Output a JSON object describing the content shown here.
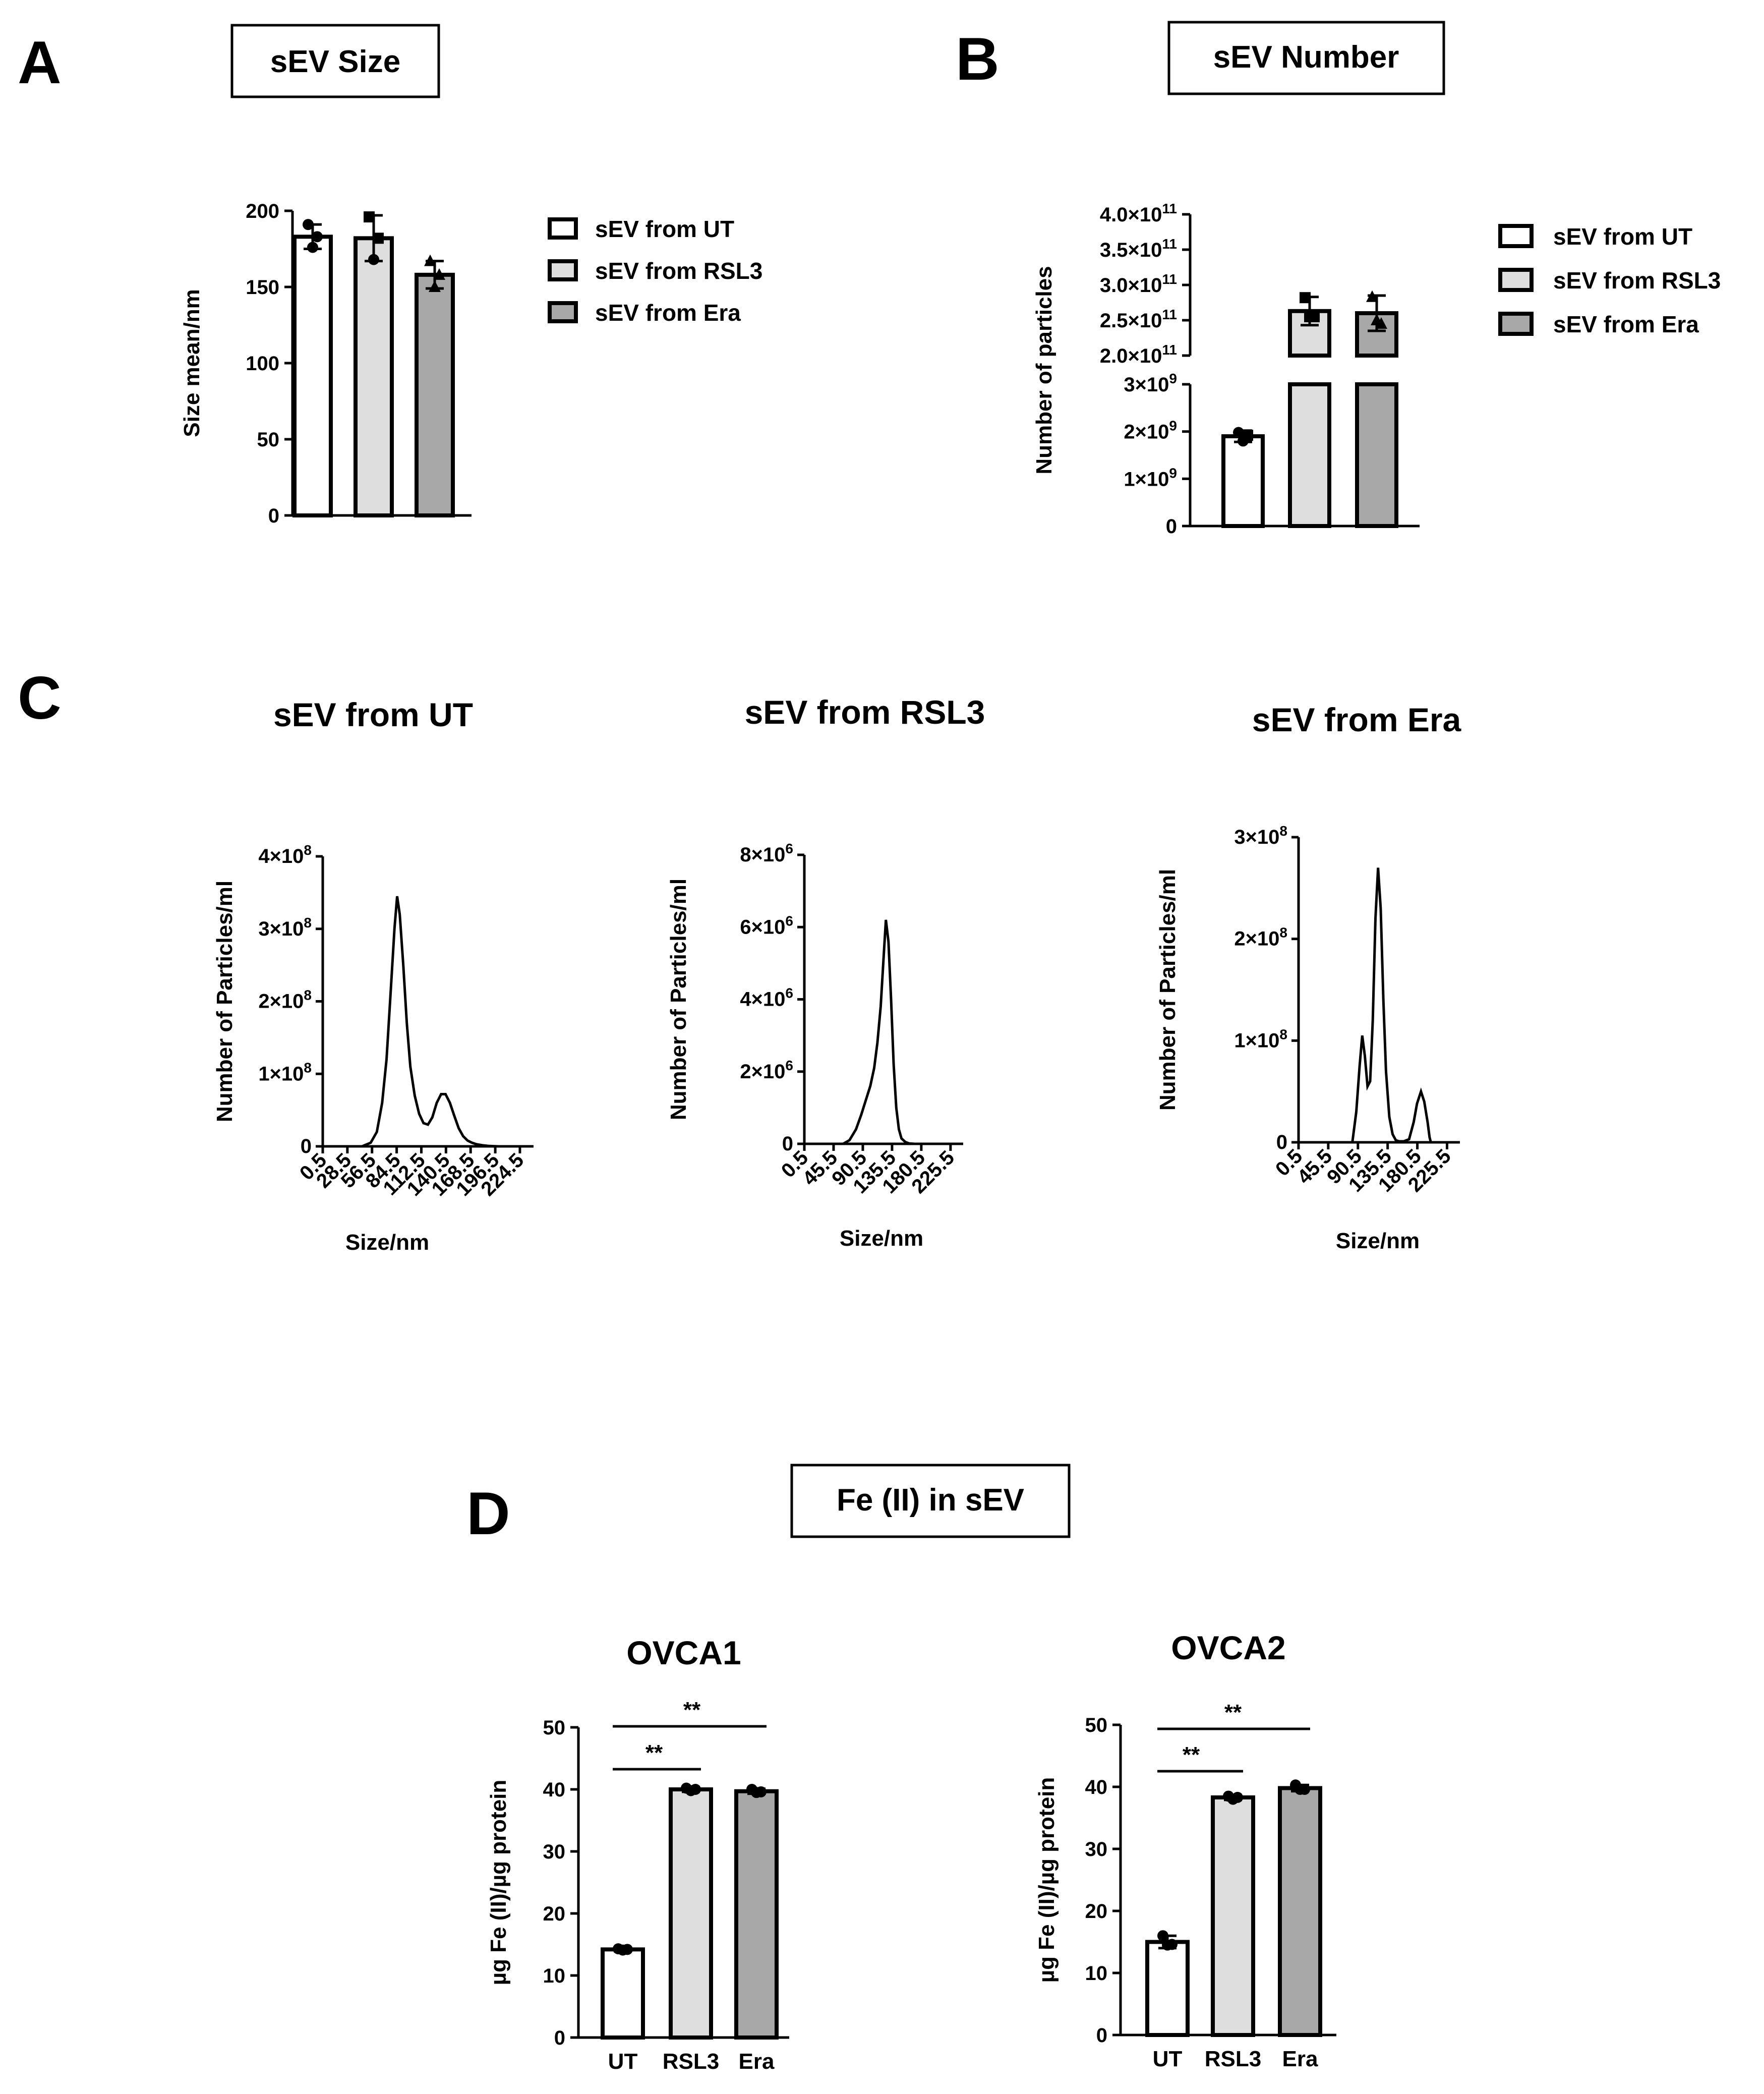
{
  "panels": {
    "A": {
      "letter": "A",
      "title": "sEV Size"
    },
    "B": {
      "letter": "B",
      "title": "sEV Number"
    },
    "C": {
      "letter": "C"
    },
    "D": {
      "letter": "D",
      "title": "Fe (II) in sEV"
    }
  },
  "legend": {
    "items": [
      {
        "label": "sEV from UT",
        "color": "#ffffff"
      },
      {
        "label": "sEV from RSL3",
        "color": "#dedede"
      },
      {
        "label": "sEV from Era",
        "color": "#a8a8a8"
      }
    ]
  },
  "chart_data": [
    {
      "id": "size",
      "type": "bar",
      "ylabel": "Size mean/nm",
      "ylim": [
        0,
        200
      ],
      "yticks": [
        "0",
        "50",
        "100",
        "150",
        "200"
      ],
      "categories": [
        "sEV from UT",
        "sEV from RSL3",
        "sEV from Era"
      ],
      "values": [
        183,
        182,
        158
      ],
      "errors": [
        8,
        15,
        9
      ],
      "points": [
        [
          191,
          176,
          183
        ],
        [
          196,
          168,
          182
        ],
        [
          167,
          150,
          158
        ]
      ]
    },
    {
      "id": "number",
      "type": "bar",
      "ylabel": "Number of particles",
      "axis_break": true,
      "lower_ylim": [
        0,
        3000000000.0
      ],
      "lower_ticks": [
        {
          "m": "0",
          "e": ""
        },
        {
          "m": "1×10",
          "e": "9"
        },
        {
          "m": "2×10",
          "e": "9"
        },
        {
          "m": "3×10",
          "e": "9"
        }
      ],
      "upper_ylim": [
        200000000000.0,
        400000000000.0
      ],
      "upper_ticks": [
        {
          "m": "2.0×10",
          "e": "11"
        },
        {
          "m": "2.5×10",
          "e": "11"
        },
        {
          "m": "3.0×10",
          "e": "11"
        },
        {
          "m": "3.5×10",
          "e": "11"
        },
        {
          "m": "4.0×10",
          "e": "11"
        }
      ],
      "categories": [
        "sEV from UT",
        "sEV from RSL3",
        "sEV from Era"
      ],
      "values": [
        1900000000.0,
        263000000000.0,
        260000000000.0
      ],
      "errors": [
        120000000.0,
        20000000000.0,
        25000000000.0
      ],
      "points": [
        [
          1980000000.0,
          1800000000.0,
          1920000000.0
        ],
        [
          282000000000.0,
          255000000000.0,
          255000000000.0
        ],
        [
          283000000000.0,
          250000000000.0,
          245000000000.0
        ]
      ]
    },
    {
      "id": "dist_ut",
      "type": "line",
      "title": "sEV from UT",
      "xlabel": "Size/nm",
      "ylabel": "Number of Particles/ml",
      "xlim": [
        0.5,
        240
      ],
      "ylim": [
        0,
        400000000.0
      ],
      "xticks": [
        "0.5",
        "28.5",
        "56.5",
        "84.5",
        "112.5",
        "140.5",
        "168.5",
        "196.5",
        "224.5"
      ],
      "xtick_values": [
        0.5,
        28.5,
        56.5,
        84.5,
        112.5,
        140.5,
        168.5,
        196.5,
        224.5
      ],
      "yticks": [
        {
          "m": "0",
          "e": ""
        },
        {
          "m": "1×10",
          "e": "8"
        },
        {
          "m": "2×10",
          "e": "8"
        },
        {
          "m": "3×10",
          "e": "8"
        },
        {
          "m": "4×10",
          "e": "8"
        }
      ],
      "x": [
        45,
        55,
        62,
        68,
        73,
        78,
        82,
        85,
        88,
        92,
        96,
        100,
        105,
        110,
        115,
        120,
        125,
        130,
        135,
        140,
        145,
        150,
        155,
        160,
        165,
        170,
        175,
        182,
        190,
        200
      ],
      "y": [
        0,
        5000000.0,
        20000000.0,
        60000000.0,
        120000000.0,
        220000000.0,
        300000000.0,
        345000000.0,
        320000000.0,
        250000000.0,
        170000000.0,
        110000000.0,
        70000000.0,
        45000000.0,
        32000000.0,
        30000000.0,
        40000000.0,
        60000000.0,
        72000000.0,
        72000000.0,
        60000000.0,
        42000000.0,
        25000000.0,
        14000000.0,
        8000000.0,
        5000000.0,
        3000000.0,
        1500000.0,
        500000.0,
        0
      ]
    },
    {
      "id": "dist_rsl3",
      "type": "line",
      "title": "sEV from RSL3",
      "xlabel": "Size/nm",
      "ylabel": "Number of Particles/ml",
      "xlim": [
        0.5,
        245
      ],
      "ylim": [
        0,
        8000000.0
      ],
      "xticks": [
        "0.5",
        "45.5",
        "90.5",
        "135.5",
        "180.5",
        "225.5"
      ],
      "xtick_values": [
        0.5,
        45.5,
        90.5,
        135.5,
        180.5,
        225.5
      ],
      "yticks": [
        {
          "m": "0",
          "e": ""
        },
        {
          "m": "2×10",
          "e": "6"
        },
        {
          "m": "4×10",
          "e": "6"
        },
        {
          "m": "6×10",
          "e": "6"
        },
        {
          "m": "8×10",
          "e": "6"
        }
      ],
      "x": [
        60,
        70,
        80,
        88,
        95,
        102,
        108,
        113,
        118,
        122,
        126,
        130,
        134,
        138,
        142,
        146,
        150,
        156,
        162,
        170,
        180
      ],
      "y": [
        0,
        100000.0,
        400000.0,
        800000.0,
        1200000.0,
        1600000.0,
        2100000.0,
        2800000.0,
        3800000.0,
        5000000.0,
        6200000.0,
        5600000.0,
        4000000.0,
        2200000.0,
        1000000.0,
        400000.0,
        150000.0,
        50000.0,
        10000.0,
        0,
        0
      ]
    },
    {
      "id": "dist_era",
      "type": "line",
      "title": "sEV from Era",
      "xlabel": "Size/nm",
      "ylabel": "Number of Particles/ml",
      "xlim": [
        0.5,
        245
      ],
      "ylim": [
        0,
        300000000.0
      ],
      "xticks": [
        "0.5",
        "45.5",
        "90.5",
        "135.5",
        "180.5",
        "225.5"
      ],
      "xtick_values": [
        0.5,
        45.5,
        90.5,
        135.5,
        180.5,
        225.5
      ],
      "yticks": [
        {
          "m": "0",
          "e": ""
        },
        {
          "m": "1×10",
          "e": "8"
        },
        {
          "m": "2×10",
          "e": "8"
        },
        {
          "m": "3×10",
          "e": "8"
        }
      ],
      "x": [
        82,
        88,
        93,
        97,
        101,
        105,
        109,
        113,
        117,
        121,
        125,
        129,
        133,
        138,
        143,
        148,
        153,
        160,
        168,
        175,
        180,
        186,
        191,
        196,
        199,
        201
      ],
      "y": [
        0,
        30000000.0,
        75000000.0,
        105000000.0,
        85000000.0,
        55000000.0,
        60000000.0,
        120000000.0,
        220000000.0,
        270000000.0,
        230000000.0,
        140000000.0,
        70000000.0,
        25000000.0,
        8000000.0,
        2000000.0,
        1000000.0,
        1000000.0,
        3000000.0,
        20000000.0,
        38000000.0,
        50000000.0,
        40000000.0,
        20000000.0,
        5000000.0,
        0
      ]
    },
    {
      "id": "fe_ovca1",
      "type": "bar",
      "title": "OVCA1",
      "ylabel": "µg Fe (II)/µg protein",
      "ylim": [
        0,
        50
      ],
      "yticks": [
        "0",
        "10",
        "20",
        "30",
        "40",
        "50"
      ],
      "categories": [
        "UT",
        "RSL3",
        "Era"
      ],
      "values": [
        14.2,
        40.0,
        39.7
      ],
      "errors": [
        0.3,
        0.4,
        0.4
      ],
      "points": [
        [
          14.3,
          14.1,
          14.2
        ],
        [
          40.2,
          39.8,
          40.0
        ],
        [
          40.0,
          39.5,
          39.6
        ]
      ],
      "significance": [
        {
          "from": 0,
          "to": 1,
          "label": "**"
        },
        {
          "from": 0,
          "to": 2,
          "label": "**"
        }
      ]
    },
    {
      "id": "fe_ovca2",
      "type": "bar",
      "title": "OVCA2",
      "ylabel": "µg Fe (II)/µg protein",
      "ylim": [
        0,
        50
      ],
      "yticks": [
        "0",
        "10",
        "20",
        "30",
        "40",
        "50"
      ],
      "categories": [
        "UT",
        "RSL3",
        "Era"
      ],
      "values": [
        15.0,
        38.3,
        39.8
      ],
      "errors": [
        1.0,
        0.4,
        0.5
      ],
      "points": [
        [
          16.0,
          14.5,
          14.6
        ],
        [
          38.5,
          38.0,
          38.3
        ],
        [
          40.3,
          39.6,
          39.6
        ]
      ],
      "significance": [
        {
          "from": 0,
          "to": 1,
          "label": "**"
        },
        {
          "from": 0,
          "to": 2,
          "label": "**"
        }
      ]
    }
  ]
}
